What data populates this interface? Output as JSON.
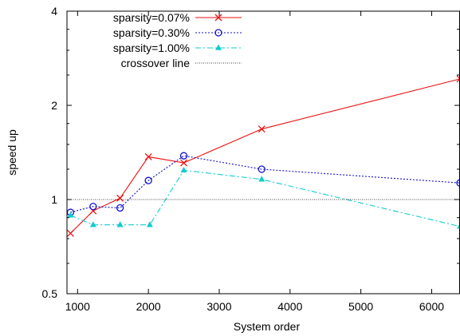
{
  "chart_data": {
    "type": "line",
    "xlabel": "System order",
    "ylabel": "speed up",
    "xlim": [
      850,
      6400
    ],
    "ylim": [
      0.5,
      4
    ],
    "yscale": "log2",
    "xticks": [
      1000,
      2000,
      3000,
      4000,
      5000,
      6000
    ],
    "yticks": [
      0.5,
      1,
      2,
      4
    ],
    "legend_position": "top-left",
    "grid": false,
    "series": [
      {
        "name": "sparsity=0.07%",
        "color": "#ee1111",
        "marker": "x",
        "dash": "solid",
        "points": [
          [
            900,
            0.78
          ],
          [
            1220,
            0.92
          ],
          [
            1600,
            1.01
          ],
          [
            2000,
            1.37
          ],
          [
            2500,
            1.31
          ],
          [
            3600,
            1.68
          ],
          [
            6400,
            2.43
          ]
        ]
      },
      {
        "name": "sparsity=0.30%",
        "color": "#1111cc",
        "marker": "circle",
        "dash": "dot",
        "points": [
          [
            900,
            0.91
          ],
          [
            1220,
            0.95
          ],
          [
            1600,
            0.94
          ],
          [
            2000,
            1.15
          ],
          [
            2500,
            1.38
          ],
          [
            3600,
            1.25
          ],
          [
            6400,
            1.13
          ]
        ]
      },
      {
        "name": "sparsity=1.00%",
        "color": "#11cccc",
        "marker": "triangle",
        "dash": "dashdot",
        "points": [
          [
            900,
            0.89
          ],
          [
            1220,
            0.83
          ],
          [
            1600,
            0.83
          ],
          [
            2020,
            0.83
          ],
          [
            2500,
            1.24
          ],
          [
            3600,
            1.16
          ],
          [
            6400,
            0.82
          ]
        ]
      },
      {
        "name": "crossover line",
        "color": "#000000",
        "marker": "none",
        "dash": "fine-dot",
        "points": [
          [
            850,
            1
          ],
          [
            6400,
            1
          ]
        ]
      }
    ]
  }
}
